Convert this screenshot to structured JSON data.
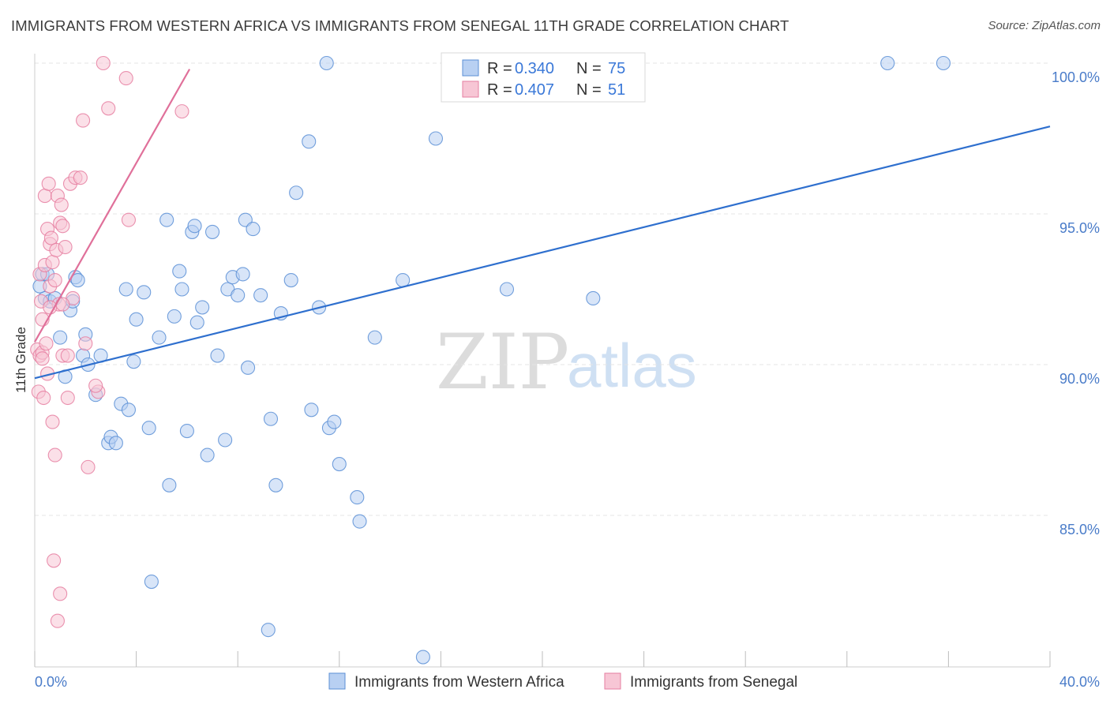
{
  "chart_data": {
    "type": "scatter",
    "title": "IMMIGRANTS FROM WESTERN AFRICA VS IMMIGRANTS FROM SENEGAL 11TH GRADE CORRELATION CHART",
    "source": "Source: ZipAtlas.com",
    "xlabel": "",
    "ylabel": "11th Grade",
    "xlim": [
      0,
      40
    ],
    "ylim": [
      80,
      100.5
    ],
    "x_tick_labels": [
      "0.0%",
      "40.0%"
    ],
    "y_ticks": [
      85,
      90,
      95,
      100
    ],
    "y_tick_labels": [
      "85.0%",
      "90.0%",
      "95.0%",
      "100.0%"
    ],
    "grid": true,
    "watermark": [
      "ZIP",
      "atlas"
    ],
    "legend": {
      "position": "top-center",
      "entries": [
        {
          "r_label": "R =",
          "r_value": "0.340",
          "n_label": "N =",
          "n_value": "75"
        },
        {
          "r_label": "R =",
          "r_value": "0.407",
          "n_label": "N =",
          "n_value": "51"
        }
      ]
    },
    "series": [
      {
        "name": "Immigrants from Western Africa",
        "color": "#5b8fd6",
        "fill": "#b8d0f2",
        "trend": {
          "x1": 0.0,
          "y1": 89.55,
          "x2": 40.0,
          "y2": 97.9
        },
        "points": [
          [
            0.3,
            93.0
          ],
          [
            0.4,
            92.2
          ],
          [
            0.5,
            93.0
          ],
          [
            0.6,
            92.1
          ],
          [
            0.8,
            92.2
          ],
          [
            1.0,
            90.9
          ],
          [
            1.2,
            89.6
          ],
          [
            1.4,
            91.8
          ],
          [
            1.5,
            92.1
          ],
          [
            1.6,
            92.9
          ],
          [
            1.7,
            92.8
          ],
          [
            1.9,
            90.3
          ],
          [
            2.1,
            90.0
          ],
          [
            2.4,
            89.0
          ],
          [
            2.6,
            90.3
          ],
          [
            2.9,
            87.4
          ],
          [
            3.0,
            87.6
          ],
          [
            3.2,
            87.4
          ],
          [
            3.4,
            88.7
          ],
          [
            3.6,
            92.5
          ],
          [
            3.7,
            88.5
          ],
          [
            3.9,
            90.1
          ],
          [
            4.0,
            91.5
          ],
          [
            4.3,
            92.4
          ],
          [
            4.5,
            87.9
          ],
          [
            4.6,
            82.8
          ],
          [
            4.9,
            90.9
          ],
          [
            5.2,
            94.8
          ],
          [
            5.3,
            86.0
          ],
          [
            5.5,
            91.6
          ],
          [
            5.7,
            93.1
          ],
          [
            5.8,
            92.5
          ],
          [
            6.0,
            87.8
          ],
          [
            6.2,
            94.4
          ],
          [
            6.3,
            94.6
          ],
          [
            6.4,
            91.4
          ],
          [
            6.6,
            91.9
          ],
          [
            6.8,
            87.0
          ],
          [
            7.0,
            94.4
          ],
          [
            7.2,
            90.3
          ],
          [
            7.5,
            87.5
          ],
          [
            7.6,
            92.5
          ],
          [
            7.8,
            92.9
          ],
          [
            8.0,
            92.3
          ],
          [
            8.2,
            93.0
          ],
          [
            8.3,
            94.8
          ],
          [
            8.4,
            89.9
          ],
          [
            8.6,
            94.5
          ],
          [
            8.9,
            92.3
          ],
          [
            9.2,
            81.2
          ],
          [
            9.3,
            88.2
          ],
          [
            9.5,
            86.0
          ],
          [
            9.7,
            91.7
          ],
          [
            10.1,
            92.8
          ],
          [
            10.3,
            95.7
          ],
          [
            10.8,
            97.4
          ],
          [
            10.9,
            88.5
          ],
          [
            11.2,
            91.9
          ],
          [
            11.5,
            100.0
          ],
          [
            11.6,
            87.9
          ],
          [
            11.8,
            88.1
          ],
          [
            12.0,
            86.7
          ],
          [
            12.7,
            85.6
          ],
          [
            12.8,
            84.8
          ],
          [
            13.4,
            90.9
          ],
          [
            14.5,
            92.8
          ],
          [
            15.3,
            80.3
          ],
          [
            15.8,
            97.5
          ],
          [
            16.3,
            100.0
          ],
          [
            18.6,
            92.5
          ],
          [
            22.0,
            92.2
          ],
          [
            33.6,
            100.0
          ],
          [
            35.8,
            100.0
          ],
          [
            0.2,
            92.6
          ],
          [
            2.0,
            91.0
          ]
        ]
      },
      {
        "name": "Immigrants from Senegal",
        "color": "#e67fa1",
        "fill": "#f7c6d5",
        "trend": {
          "x1": 0.0,
          "y1": 90.75,
          "x2": 6.1,
          "y2": 99.8
        },
        "points": [
          [
            0.1,
            90.5
          ],
          [
            0.15,
            89.1
          ],
          [
            0.2,
            90.3
          ],
          [
            0.2,
            93.0
          ],
          [
            0.25,
            92.1
          ],
          [
            0.3,
            90.4
          ],
          [
            0.3,
            91.5
          ],
          [
            0.35,
            88.9
          ],
          [
            0.4,
            93.3
          ],
          [
            0.4,
            95.6
          ],
          [
            0.45,
            90.7
          ],
          [
            0.5,
            94.5
          ],
          [
            0.5,
            89.7
          ],
          [
            0.55,
            96.0
          ],
          [
            0.6,
            94.0
          ],
          [
            0.6,
            92.6
          ],
          [
            0.65,
            94.2
          ],
          [
            0.7,
            88.1
          ],
          [
            0.7,
            93.4
          ],
          [
            0.75,
            83.5
          ],
          [
            0.8,
            92.8
          ],
          [
            0.8,
            87.0
          ],
          [
            0.85,
            93.8
          ],
          [
            0.9,
            81.5
          ],
          [
            0.9,
            95.6
          ],
          [
            0.95,
            92.0
          ],
          [
            1.0,
            94.7
          ],
          [
            1.0,
            82.4
          ],
          [
            1.05,
            95.3
          ],
          [
            1.1,
            94.6
          ],
          [
            1.1,
            90.3
          ],
          [
            1.2,
            93.9
          ],
          [
            1.3,
            90.3
          ],
          [
            1.3,
            88.9
          ],
          [
            1.4,
            96.0
          ],
          [
            1.5,
            92.2
          ],
          [
            1.6,
            96.2
          ],
          [
            1.8,
            96.2
          ],
          [
            1.9,
            98.1
          ],
          [
            2.0,
            90.7
          ],
          [
            2.1,
            86.6
          ],
          [
            2.5,
            89.1
          ],
          [
            2.7,
            100.0
          ],
          [
            2.9,
            98.5
          ],
          [
            3.6,
            99.5
          ],
          [
            3.7,
            94.8
          ],
          [
            5.8,
            98.4
          ],
          [
            0.3,
            90.2
          ],
          [
            0.6,
            91.9
          ],
          [
            1.1,
            92.0
          ],
          [
            2.4,
            89.3
          ]
        ]
      }
    ]
  },
  "bottom_legend": [
    {
      "label": "Immigrants from Western Africa"
    },
    {
      "label": "Immigrants from Senegal"
    }
  ]
}
